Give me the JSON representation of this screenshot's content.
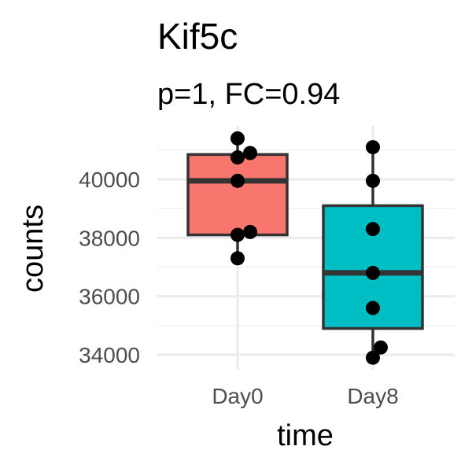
{
  "chart_data": {
    "type": "box",
    "title": "Kif5c",
    "subtitle": "p=1, FC=0.94",
    "xlabel": "time",
    "ylabel": "counts",
    "categories": [
      "Day0",
      "Day8"
    ],
    "yticks": [
      34000,
      36000,
      38000,
      40000
    ],
    "ylim": [
      33700,
      41700
    ],
    "grid": true,
    "legend": "none",
    "boxes": [
      {
        "category": "Day0",
        "color": "#F8766D",
        "min": 37300,
        "q1": 38100,
        "median": 39950,
        "q3": 40850,
        "max": 41400
      },
      {
        "category": "Day8",
        "color": "#00BFC4",
        "min": 33900,
        "q1": 34900,
        "median": 36800,
        "q3": 39100,
        "max": 41100
      }
    ],
    "points": [
      {
        "category": "Day0",
        "values": [
          41400,
          40750,
          40900,
          39950,
          38100,
          38200,
          37300
        ]
      },
      {
        "category": "Day8",
        "values": [
          41100,
          39950,
          38300,
          36800,
          35600,
          34250,
          33900
        ]
      }
    ]
  }
}
